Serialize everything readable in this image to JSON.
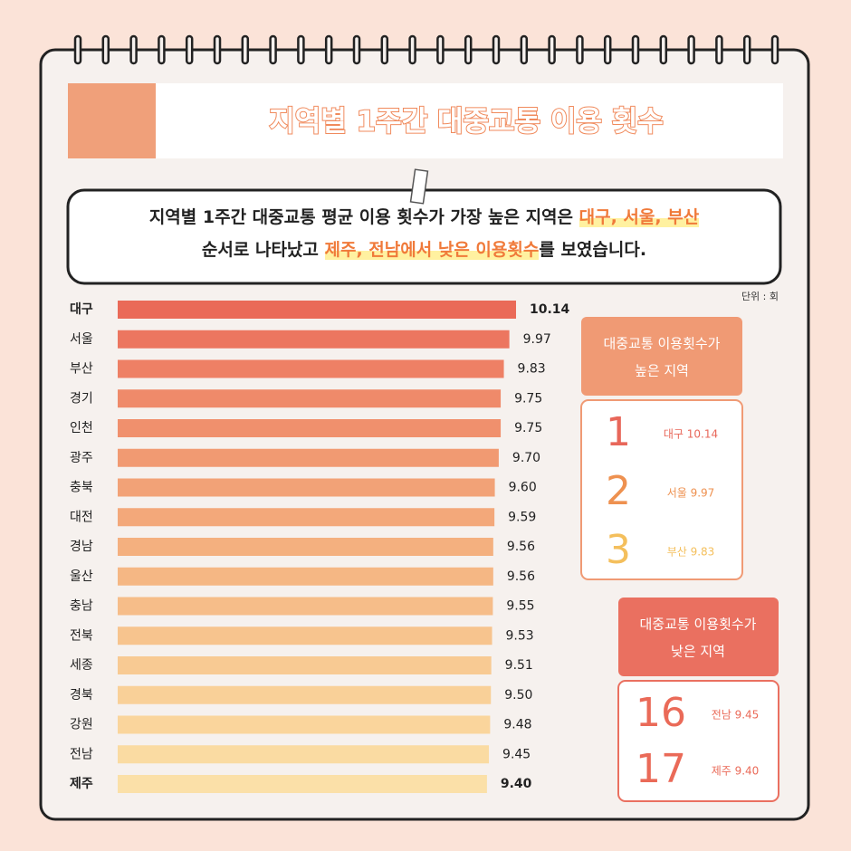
{
  "title": "지역별 1주간 대중교통 이용 횟수",
  "description": {
    "line1": [
      "지역별 1주간 대중교통 평균 이용 횟수가 가장 높은 지역은 ",
      "대구, 서울, 부산"
    ],
    "line2": [
      "순서로 나타났고 ",
      "제주, 전남에서 낮은 이용횟수",
      "를 보였습니다."
    ]
  },
  "unit": "단위 : 회",
  "high": {
    "heading": [
      "대중교통 이용횟수가",
      "높은 지역"
    ],
    "items": [
      {
        "rank": "1",
        "label": "대구 10.14"
      },
      {
        "rank": "2",
        "label": "서울 9.97"
      },
      {
        "rank": "3",
        "label": "부산 9.83"
      }
    ]
  },
  "low": {
    "heading": [
      "대중교통 이용횟수가",
      "낮은 지역"
    ],
    "items": [
      {
        "rank": "16",
        "label": "전남 9.45"
      },
      {
        "rank": "17",
        "label": "제주 9.40"
      }
    ]
  },
  "chart_data": {
    "type": "hbar",
    "categories": [
      "대구",
      "서울",
      "부산",
      "경기",
      "인천",
      "광주",
      "충북",
      "대전",
      "경남",
      "울산",
      "충남",
      "전북",
      "세종",
      "경북",
      "강원",
      "전남",
      "제주"
    ],
    "values": [
      10.14,
      9.97,
      9.83,
      9.75,
      9.75,
      9.7,
      9.6,
      9.59,
      9.56,
      9.56,
      9.55,
      9.53,
      9.51,
      9.5,
      9.48,
      9.45,
      9.4
    ],
    "value_labels": [
      "10.14",
      "9.97",
      "9.83",
      "9.75",
      "9.75",
      "9.70",
      "9.60",
      "9.59",
      "9.56",
      "9.56",
      "9.55",
      "9.53",
      "9.51",
      "9.50",
      "9.48",
      "9.45",
      "9.40"
    ],
    "colors": [
      "#ea6a58",
      "#ec7660",
      "#ee8065",
      "#ef8a6a",
      "#f0906d",
      "#f19a72",
      "#f2a277",
      "#f3a87a",
      "#f4b07f",
      "#f5b784",
      "#f6bd89",
      "#f7c48e",
      "#f8ca93",
      "#f9d098",
      "#fad59c",
      "#fadba2",
      "#fbe0a8"
    ],
    "xlim": [
      0,
      10.14
    ]
  }
}
